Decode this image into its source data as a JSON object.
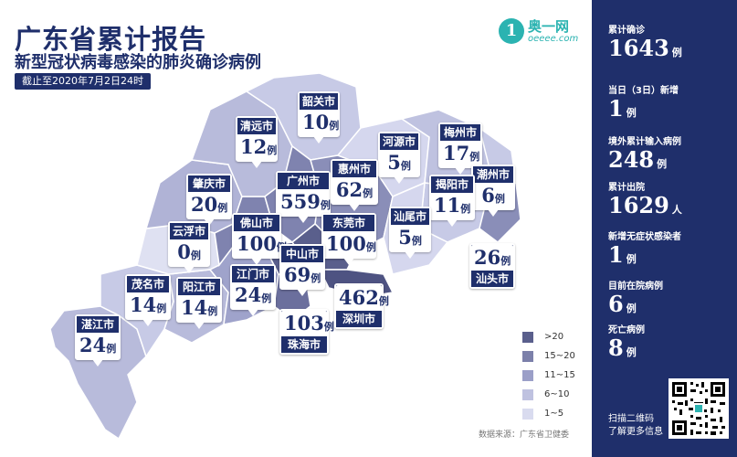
{
  "header": {
    "title": "广东省累计报告",
    "subtitle": "新型冠状病毒感染的肺炎确诊病例",
    "date": "截止至2020年7月2日24时"
  },
  "logo": {
    "mark": "1",
    "name": "奥一网",
    "domain": "oeeee.com"
  },
  "cities": [
    {
      "name": "韶关市",
      "value": "10",
      "unit": "例"
    },
    {
      "name": "清远市",
      "value": "12",
      "unit": "例"
    },
    {
      "name": "河源市",
      "value": "5",
      "unit": "例"
    },
    {
      "name": "梅州市",
      "value": "17",
      "unit": "例"
    },
    {
      "name": "潮州市",
      "value": "6",
      "unit": "例"
    },
    {
      "name": "肇庆市",
      "value": "20",
      "unit": "例"
    },
    {
      "name": "广州市",
      "value": "559",
      "unit": "例"
    },
    {
      "name": "惠州市",
      "value": "62",
      "unit": "例"
    },
    {
      "name": "揭阳市",
      "value": "11",
      "unit": "例"
    },
    {
      "name": "云浮市",
      "value": "0",
      "unit": "例"
    },
    {
      "name": "佛山市",
      "value": "100",
      "unit": "例"
    },
    {
      "name": "东莞市",
      "value": "100",
      "unit": "例"
    },
    {
      "name": "汕尾市",
      "value": "5",
      "unit": "例"
    },
    {
      "name": "汕头市",
      "value": "26",
      "unit": "例"
    },
    {
      "name": "中山市",
      "value": "69",
      "unit": "例"
    },
    {
      "name": "江门市",
      "value": "24",
      "unit": "例"
    },
    {
      "name": "茂名市",
      "value": "14",
      "unit": "例"
    },
    {
      "name": "阳江市",
      "value": "14",
      "unit": "例"
    },
    {
      "name": "深圳市",
      "value": "462",
      "unit": "例"
    },
    {
      "name": "珠海市",
      "value": "103",
      "unit": "例"
    },
    {
      "name": "湛江市",
      "value": "24",
      "unit": "例"
    }
  ],
  "legend": [
    {
      "label": ">20",
      "color": "#5a5f8c"
    },
    {
      "label": "15~20",
      "color": "#7c80aa"
    },
    {
      "label": "11~15",
      "color": "#9b9fc8"
    },
    {
      "label": "6~10",
      "color": "#bfc2e0"
    },
    {
      "label": "1~5",
      "color": "#d9dbef"
    }
  ],
  "source": "数据来源：广东省卫健委",
  "stats": [
    {
      "label": "累计确诊",
      "value": "1643",
      "unit": "例"
    },
    {
      "label": "当日（3日）新增",
      "value": "1",
      "unit": "例"
    },
    {
      "label": "境外累计输入病例",
      "value": "248",
      "unit": "例"
    },
    {
      "label": "累计出院",
      "value": "1629",
      "unit": "人"
    },
    {
      "label": "新增无症状感染者",
      "value": "1",
      "unit": "例"
    },
    {
      "label": "目前在院病例",
      "value": "6",
      "unit": "例"
    },
    {
      "label": "死亡病例",
      "value": "8",
      "unit": "例"
    }
  ],
  "qr": {
    "line1": "扫描二维码",
    "line2": "了解更多信息"
  },
  "colors": {
    "primary": "#1f2f6b",
    "accent": "#2bb3b1"
  }
}
